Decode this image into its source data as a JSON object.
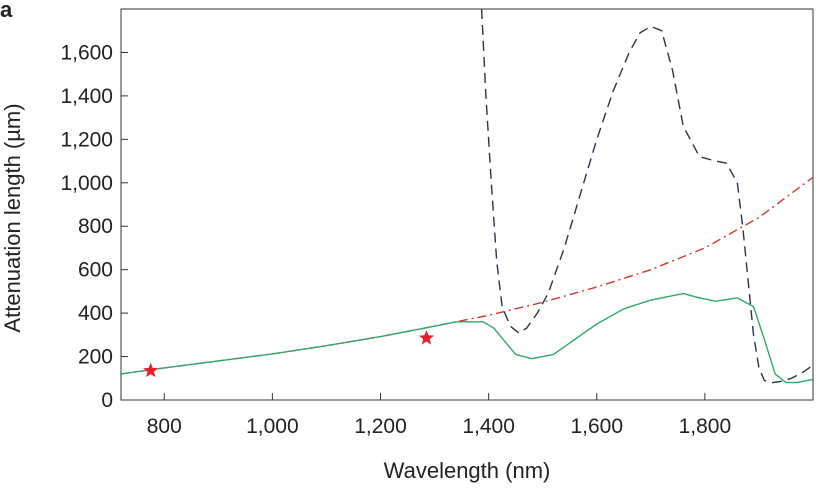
{
  "panel_label": "a",
  "chart_data": {
    "type": "line",
    "title": "",
    "xlabel": "Wavelength (nm)",
    "ylabel": "Attenuation length (µm)",
    "xlim": [
      720,
      2000
    ],
    "ylim": [
      0,
      1800
    ],
    "xticks": [
      800,
      1000,
      1200,
      1400,
      1600,
      1800
    ],
    "xtick_labels": [
      "800",
      "1,000",
      "1,200",
      "1,400",
      "1,600",
      "1,800"
    ],
    "yticks": [
      0,
      200,
      400,
      600,
      800,
      1000,
      1200,
      1400,
      1600
    ],
    "ytick_labels": [
      "0",
      "200",
      "400",
      "600",
      "800",
      "1,000",
      "1,200",
      "1,400",
      "1,600"
    ],
    "series": [
      {
        "name": "dash-dot (red)",
        "style": "dashdot",
        "color": "#cc3a2a",
        "x": [
          720,
          800,
          900,
          1000,
          1100,
          1200,
          1300,
          1400,
          1500,
          1600,
          1700,
          1800,
          1900,
          2000
        ],
        "y": [
          120,
          148,
          180,
          212,
          250,
          292,
          340,
          390,
          450,
          520,
          600,
          700,
          840,
          1025
        ]
      },
      {
        "name": "dashed (dark)",
        "style": "dashed",
        "color": "#2a3344",
        "x": [
          1387,
          1395,
          1405,
          1415,
          1425,
          1440,
          1455,
          1470,
          1490,
          1510,
          1540,
          1570,
          1600,
          1630,
          1660,
          1680,
          1700,
          1720,
          1740,
          1760,
          1790,
          1820,
          1840,
          1860,
          1870,
          1880,
          1890,
          1900,
          1910,
          1925,
          1940,
          1960,
          1980,
          2000
        ],
        "y": [
          1800,
          1400,
          1000,
          640,
          430,
          340,
          310,
          330,
          400,
          490,
          700,
          950,
          1200,
          1420,
          1600,
          1690,
          1720,
          1700,
          1520,
          1260,
          1120,
          1100,
          1090,
          1000,
          800,
          550,
          300,
          150,
          90,
          80,
          85,
          100,
          125,
          160
        ]
      },
      {
        "name": "solid (green)",
        "style": "solid",
        "color": "#2ea86a",
        "x": [
          720,
          800,
          900,
          1000,
          1100,
          1200,
          1280,
          1340,
          1390,
          1410,
          1430,
          1450,
          1480,
          1520,
          1560,
          1600,
          1650,
          1700,
          1760,
          1790,
          1820,
          1860,
          1890,
          1910,
          1930,
          1950,
          1970,
          2000
        ],
        "y": [
          120,
          148,
          180,
          212,
          250,
          292,
          330,
          360,
          360,
          330,
          270,
          210,
          190,
          210,
          280,
          350,
          420,
          460,
          490,
          470,
          455,
          470,
          430,
          280,
          120,
          80,
          80,
          95
        ]
      }
    ],
    "markers": [
      {
        "name": "star-1",
        "x": 775,
        "y": 135,
        "color": "#e8202a"
      },
      {
        "name": "star-2",
        "x": 1285,
        "y": 285,
        "color": "#e8202a"
      }
    ]
  }
}
